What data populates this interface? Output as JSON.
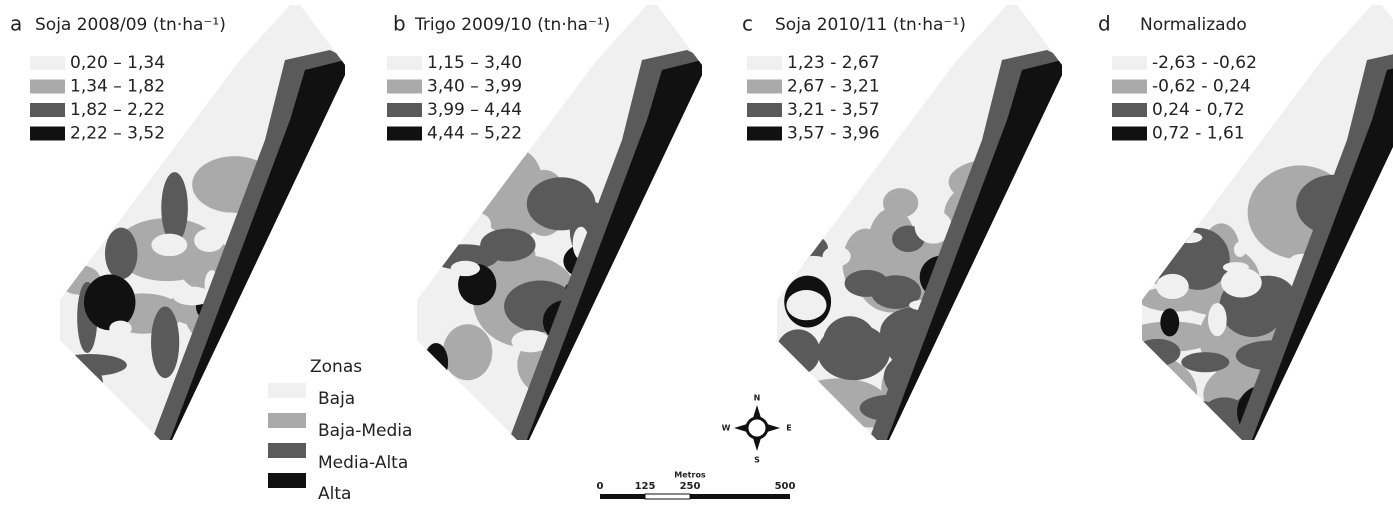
{
  "panels": [
    {
      "letter": "a",
      "title": "Soja 2008/09 (tn·ha⁻¹)",
      "legend": [
        "0,20 – 1,34",
        "1,34 – 1,82",
        "1,82 – 2,22",
        "2,22 – 3,52"
      ]
    },
    {
      "letter": "b",
      "title": "Trigo 2009/10 (tn·ha⁻¹)",
      "legend": [
        "1,15 – 3,40",
        "3,40 – 3,99",
        "3,99 – 4,44",
        "4,44 – 5,22"
      ]
    },
    {
      "letter": "c",
      "title": "Soja 2010/11 (tn·ha⁻¹)",
      "legend": [
        "1,23 - 2,67",
        "2,67 - 3,21",
        "3,21 - 3,57",
        "3,57 - 3,96"
      ]
    },
    {
      "letter": "d",
      "title": "Normalizado",
      "legend": [
        "-2,63 - -0,62",
        "-0,62 - 0,24",
        "0,24 - 0,72",
        "0,72 - 1,61"
      ]
    }
  ],
  "zones": {
    "title": "Zonas",
    "items": [
      "Baja",
      "Baja-Media",
      "Media-Alta",
      "Alta"
    ]
  },
  "compass": {
    "n": "N",
    "s": "S",
    "e": "E",
    "w": "W"
  },
  "scale": {
    "title": "Metros",
    "labels": [
      "0",
      "125",
      "250",
      "500"
    ]
  }
}
